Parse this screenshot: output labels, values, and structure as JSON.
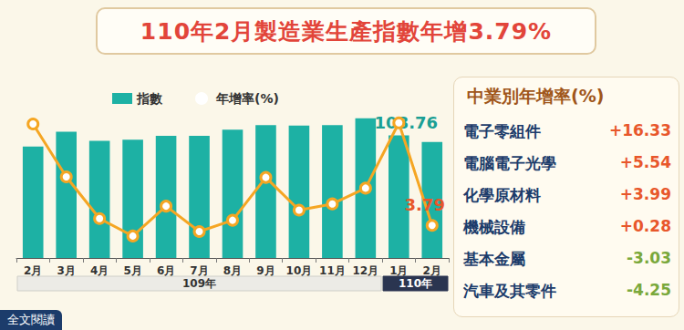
{
  "chart_data": {
    "type": "bar",
    "title": "110年2月製造業生產指數年增3.79%",
    "categories": [
      "2月",
      "3月",
      "4月",
      "5月",
      "6月",
      "7月",
      "8月",
      "9月",
      "10月",
      "11月",
      "12月",
      "1月",
      "2月"
    ],
    "x_groups": [
      {
        "label": "109年",
        "count": 11
      },
      {
        "label": "110年",
        "count": 2
      }
    ],
    "series": [
      {
        "name": "指數",
        "type": "bar",
        "color": "#1db1a4",
        "values": [
          99.0,
          112.0,
          104.0,
          105.0,
          108.5,
          108.5,
          114.0,
          118.0,
          117.5,
          118.0,
          124.0,
          108.76,
          103.0
        ],
        "value_labels": [
          null,
          null,
          null,
          null,
          null,
          null,
          null,
          null,
          null,
          null,
          null,
          "108.76",
          null
        ]
      },
      {
        "name": "年增率(%)",
        "type": "line",
        "axis": "y2",
        "color": "#f5a623",
        "marker": "circle",
        "values": [
          21.8,
          12.4,
          5.0,
          1.9,
          7.2,
          2.7,
          4.7,
          12.3,
          6.5,
          7.6,
          10.4,
          22.0,
          3.79
        ],
        "value_labels": [
          null,
          null,
          null,
          null,
          null,
          null,
          null,
          null,
          null,
          null,
          null,
          null,
          "3.79"
        ]
      }
    ],
    "ylim": [
      0,
      140
    ],
    "yticks": [
      0,
      140
    ],
    "y2lim": [
      -2,
      26
    ],
    "y2ticks": [
      -2,
      26
    ],
    "grid": false,
    "legend": "top-left",
    "tick_labels": "x"
  },
  "panel": {
    "title": "中業別年增率(%)",
    "rows": [
      {
        "name": "電子零組件",
        "value": 16.33,
        "label": "+16.33"
      },
      {
        "name": "電腦電子光學",
        "value": 5.54,
        "label": "+5.54"
      },
      {
        "name": "化學原材料",
        "value": 3.99,
        "label": "+3.99"
      },
      {
        "name": "機械設備",
        "value": 0.28,
        "label": "+0.28"
      },
      {
        "name": "基本金屬",
        "value": -3.03,
        "label": "-3.03"
      },
      {
        "name": "汽車及其零件",
        "value": -4.25,
        "label": "-4.25"
      }
    ]
  },
  "button": "全文閱讀"
}
